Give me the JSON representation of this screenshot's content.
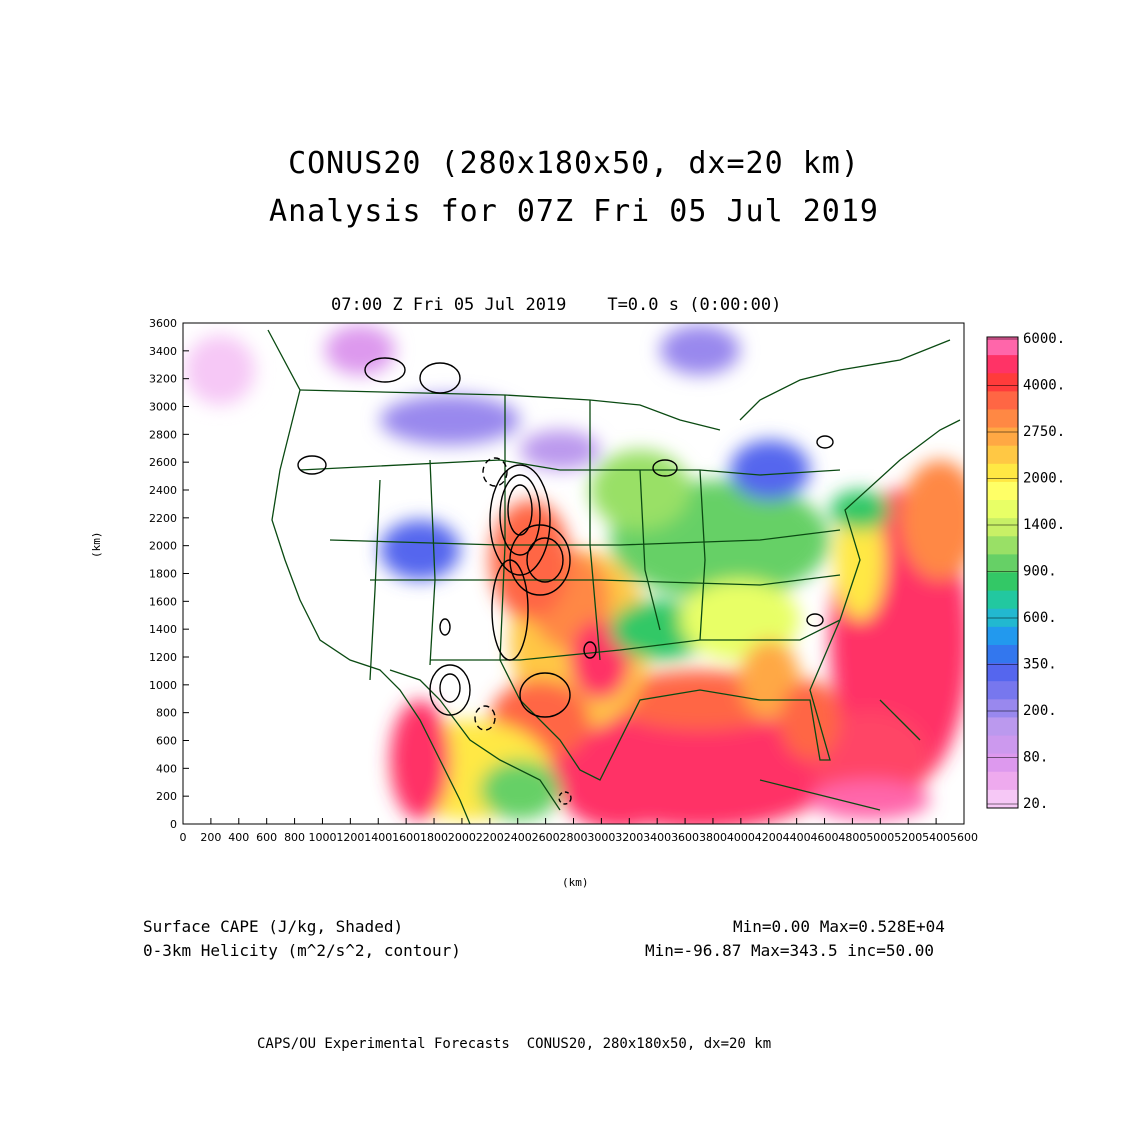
{
  "header": {
    "title_line1": "CONUS20 (280x180x50, dx=20 km)",
    "title_line2": "Analysis for 07Z Fri 05 Jul 2019",
    "subtitle": "07:00 Z Fri 05 Jul 2019    T=0.0 s (0:00:00)"
  },
  "axes": {
    "x_unit": "(km)",
    "y_unit": "(km)",
    "x_ticks": [
      "0",
      "200",
      "400",
      "600",
      "800",
      "1000",
      "1200",
      "1400",
      "1600",
      "1800",
      "2000",
      "2200",
      "2400",
      "2600",
      "2800",
      "3000",
      "3200",
      "3400",
      "3600",
      "3800",
      "4000",
      "4200",
      "4400",
      "4600",
      "4800",
      "5000",
      "5200",
      "5400",
      "5600"
    ],
    "y_ticks": [
      "0",
      "200",
      "400",
      "600",
      "800",
      "1000",
      "1200",
      "1400",
      "1600",
      "1800",
      "2000",
      "2200",
      "2400",
      "2600",
      "2800",
      "3000",
      "3200",
      "3400",
      "3600"
    ],
    "x_range": [
      0,
      5600
    ],
    "y_range": [
      0,
      3600
    ]
  },
  "colorbar": {
    "labels": [
      "6000.",
      "4000.",
      "2750.",
      "2000.",
      "1400.",
      "900.",
      "600.",
      "350.",
      "200.",
      "80.",
      "20."
    ],
    "colors": [
      "#ff66aa",
      "#ff3366",
      "#ff3b3b",
      "#ff6644",
      "#ff8844",
      "#ffa844",
      "#ffc844",
      "#ffe844",
      "#ffff66",
      "#e8ff66",
      "#c8f066",
      "#99e066",
      "#66d066",
      "#33c866",
      "#22c8a0",
      "#22b8d0",
      "#2299ee",
      "#3377ee",
      "#5566ee",
      "#7777ee",
      "#9988ee",
      "#bb99ee",
      "#cc99ee",
      "#dd99ee",
      "#eeaaee",
      "#f6c8f6"
    ]
  },
  "footer": {
    "field1": "Surface CAPE (J/kg, Shaded)",
    "field2": "0-3km Helicity (m^2/s^2, contour)",
    "stats1": "Min=0.00 Max=0.528E+04",
    "stats2": "Min=-96.87 Max=343.5 inc=50.00",
    "credit": "CAPS/OU Experimental Forecasts  CONUS20, 280x180x50, dx=20 km"
  }
}
